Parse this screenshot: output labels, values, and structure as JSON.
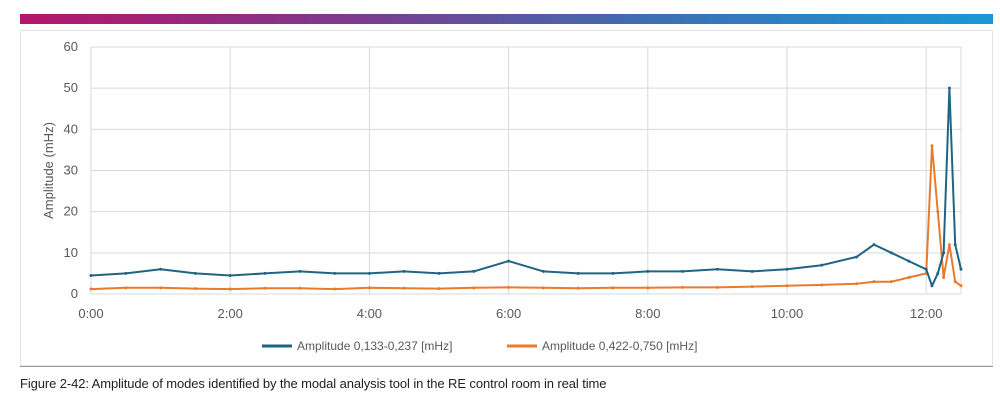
{
  "brand": {
    "bar_gradient": [
      "#b5156a",
      "#7b3b8f",
      "#3d6fb3",
      "#1a98d5"
    ]
  },
  "caption": "Figure 2-42: Amplitude of modes identified by the modal analysis tool in the RE control room in real time",
  "chart_data": {
    "type": "line",
    "title": "",
    "xlabel": "",
    "ylabel": "Amplitude (mHz)",
    "xlim": [
      "0:00",
      "12:30"
    ],
    "ylim": [
      0,
      60
    ],
    "x_ticks": [
      "0:00",
      "2:00",
      "4:00",
      "6:00",
      "8:00",
      "10:00",
      "12:00"
    ],
    "y_ticks": [
      0,
      10,
      20,
      30,
      40,
      50,
      60
    ],
    "grid": true,
    "legend_position": "bottom",
    "x": [
      "0:00",
      "0:30",
      "1:00",
      "1:30",
      "2:00",
      "2:30",
      "3:00",
      "3:30",
      "4:00",
      "4:30",
      "5:00",
      "5:30",
      "6:00",
      "6:30",
      "7:00",
      "7:30",
      "8:00",
      "8:30",
      "9:00",
      "9:30",
      "10:00",
      "10:30",
      "11:00",
      "11:15",
      "11:30",
      "11:45",
      "12:00",
      "12:05",
      "12:10",
      "12:15",
      "12:20",
      "12:25",
      "12:30"
    ],
    "series": [
      {
        "name": "Amplitude 0,133-0,237 [mHz]",
        "color": "#1f6485",
        "values": [
          4.5,
          5,
          6,
          5,
          4.5,
          5,
          5.5,
          5,
          5,
          5.5,
          5,
          5.5,
          8,
          5.5,
          5,
          5,
          5.5,
          5.5,
          6,
          5.5,
          6,
          7,
          9,
          12,
          10,
          8,
          6,
          2,
          5,
          10,
          50,
          12,
          6
        ]
      },
      {
        "name": "Amplitude 0,422-0,750 [mHz]",
        "color": "#e97a2e",
        "values": [
          1.2,
          1.5,
          1.5,
          1.3,
          1.2,
          1.4,
          1.4,
          1.2,
          1.5,
          1.4,
          1.3,
          1.5,
          1.6,
          1.5,
          1.4,
          1.5,
          1.5,
          1.6,
          1.6,
          1.8,
          2,
          2.2,
          2.5,
          3,
          3,
          4,
          5,
          36,
          20,
          4,
          12,
          3,
          2
        ]
      }
    ]
  }
}
